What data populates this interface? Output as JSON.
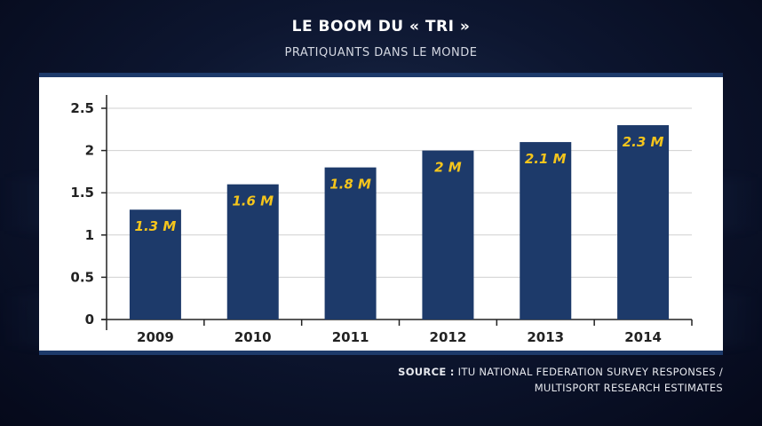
{
  "chart_data": {
    "type": "bar",
    "title": "LE BOOM DU « TRI »",
    "subtitle": "PRATIQUANTS DANS LE MONDE",
    "categories": [
      "2009",
      "2010",
      "2011",
      "2012",
      "2013",
      "2014"
    ],
    "values": [
      1.3,
      1.6,
      1.8,
      2.0,
      2.1,
      2.3
    ],
    "data_labels": [
      "1.3 M",
      "1.6 M",
      "1.8 M",
      "2 M",
      "2.1 M",
      "2.3 M"
    ],
    "yticks": [
      "0",
      "0.5",
      "1",
      "1.5",
      "2",
      "2.5"
    ],
    "ylim": [
      0,
      2.5
    ],
    "grid": true,
    "bar_color": "#1d3a6a",
    "label_color": "#f5c51c"
  },
  "source": {
    "label": "SOURCE :",
    "line1": "ITU NATIONAL FEDERATION SURVEY RESPONSES /",
    "line2": "MULTISPORT RESEARCH ESTIMATES"
  }
}
